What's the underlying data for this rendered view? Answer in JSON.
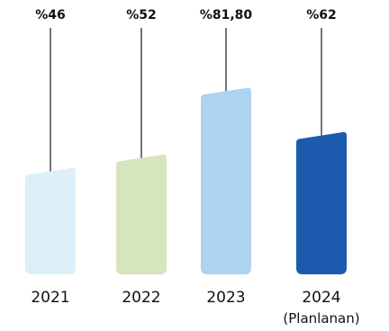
{
  "chart_data": {
    "type": "bar",
    "categories": [
      "2021",
      "2022",
      "2023",
      "2024"
    ],
    "category_sublabels": [
      "",
      "",
      "",
      "(Planlanan)"
    ],
    "values": [
      46,
      52,
      81.8,
      62
    ],
    "value_labels": [
      "%46",
      "%52",
      "%81,80",
      "%62"
    ],
    "bar_colors": [
      "#ddeff8",
      "#d5e6bc",
      "#acd3ef",
      "#1c5aae"
    ],
    "title": "",
    "xlabel": "",
    "ylabel": "",
    "ylim": [
      0,
      100
    ],
    "grid": false,
    "legend": "none"
  }
}
